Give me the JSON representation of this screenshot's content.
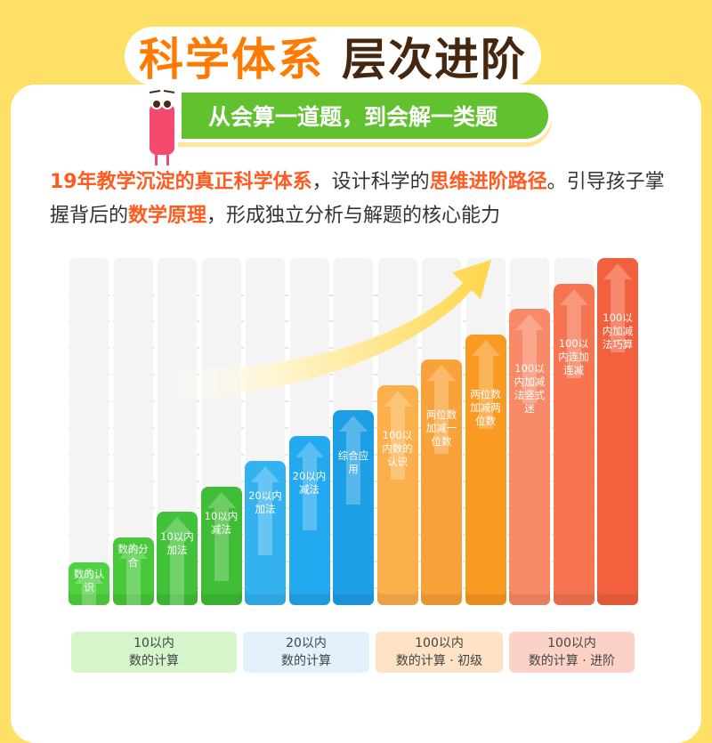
{
  "title": {
    "part1": "科学体系",
    "part2": "层次进阶"
  },
  "subtitle": "从会算一道题，到会解一类题",
  "paragraph": {
    "h1": "19年教学沉淀的真正科学体系",
    "t1": "，设计科学的",
    "h2": "思维进阶路径",
    "t2": "。引导孩子掌握背后的",
    "h3": "数学原理",
    "t3": "，形成独立分析与解题的核心能力"
  },
  "steps": [
    {
      "label": "数的认识",
      "level": 1,
      "color": "#4fd240"
    },
    {
      "label": "数的分合",
      "level": 2,
      "color": "#47c93a"
    },
    {
      "label": "10以内加法",
      "level": 3,
      "color": "#42c23a"
    },
    {
      "label": "10以内减法",
      "level": 4,
      "color": "#3fbd36"
    },
    {
      "label": "20以内加法",
      "level": 5,
      "color": "#34b2f0"
    },
    {
      "label": "20以内减法",
      "level": 6,
      "color": "#22a9ef"
    },
    {
      "label": "综合应用",
      "level": 7,
      "color": "#1d9fe6"
    },
    {
      "label": "100以内数的认识",
      "level": 8,
      "color": "#fbb04c"
    },
    {
      "label": "两位数加减一位数",
      "level": 9,
      "color": "#faa23a"
    },
    {
      "label": "两位数加减两位数",
      "level": 10,
      "color": "#f99a22"
    },
    {
      "label": "100以内加减法竖式迷",
      "level": 11,
      "color": "#f98a67"
    },
    {
      "label": "100以内连加连减",
      "level": 12,
      "color": "#f67550"
    },
    {
      "label": "100以内加减法巧算",
      "level": 13,
      "color": "#f2603d"
    }
  ],
  "legend": [
    {
      "line1": "10以内",
      "line2": "数的计算",
      "color": "#d5f5cb"
    },
    {
      "line1": "20以内",
      "line2": "数的计算",
      "color": "#e2f1fc"
    },
    {
      "line1": "100以内",
      "line2": "数的计算 · 初级",
      "color": "#fde2c5"
    },
    {
      "line1": "100以内",
      "line2": "数的计算 · 进阶",
      "color": "#fcd2c6"
    }
  ]
}
